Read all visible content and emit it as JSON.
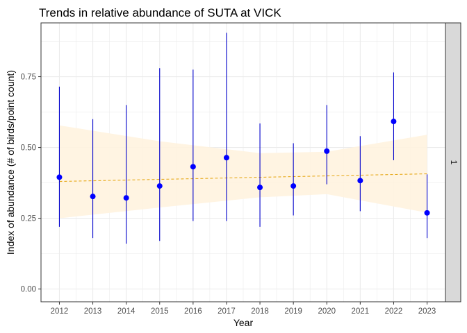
{
  "chart_data": {
    "type": "scatter",
    "title": "Trends in relative abundance of SUTA at VICK",
    "xlabel": "Year",
    "ylabel": "Index of abundance (# of birds/point count)",
    "facet_label": "1",
    "x": [
      2012,
      2013,
      2014,
      2015,
      2016,
      2017,
      2018,
      2019,
      2020,
      2021,
      2022,
      2023
    ],
    "x_tick_labels": [
      "2012",
      "2013",
      "2014",
      "2015",
      "2016",
      "2017",
      "2018",
      "2019",
      "2020",
      "2021",
      "2022",
      "2023"
    ],
    "y_ticks": [
      0.0,
      0.25,
      0.5,
      0.75
    ],
    "y_tick_labels": [
      "0.00",
      "0.25",
      "0.50",
      "0.75"
    ],
    "ylim": [
      -0.045,
      0.94
    ],
    "xlim": [
      2011.45,
      2023.55
    ],
    "series": [
      {
        "values": [
          0.395,
          0.327,
          0.322,
          0.364,
          0.432,
          0.464,
          0.359,
          0.364,
          0.487,
          0.383,
          0.592,
          0.269
        ],
        "lower": [
          0.22,
          0.18,
          0.16,
          0.17,
          0.24,
          0.24,
          0.22,
          0.26,
          0.37,
          0.275,
          0.455,
          0.18
        ],
        "upper": [
          0.715,
          0.6,
          0.65,
          0.78,
          0.775,
          0.905,
          0.585,
          0.515,
          0.65,
          0.54,
          0.765,
          0.405
        ]
      }
    ],
    "trend": {
      "start": [
        2012,
        0.38
      ],
      "end": [
        2023,
        0.407
      ],
      "band_lower": [
        [
          2012,
          0.25
        ],
        [
          2015,
          0.288
        ],
        [
          2018,
          0.324
        ],
        [
          2020,
          0.335
        ],
        [
          2023,
          0.27
        ]
      ],
      "band_upper": [
        [
          2012,
          0.578
        ],
        [
          2015,
          0.522
        ],
        [
          2018,
          0.48
        ],
        [
          2020,
          0.485
        ],
        [
          2023,
          0.545
        ]
      ]
    },
    "grid": true,
    "colors": {
      "points": "#0000ff",
      "errorbars": "#0000cc",
      "trend_line": "#e6a817",
      "band": "#fff3df",
      "grid": "#ebebeb",
      "strip": "#d9d9d9"
    }
  }
}
